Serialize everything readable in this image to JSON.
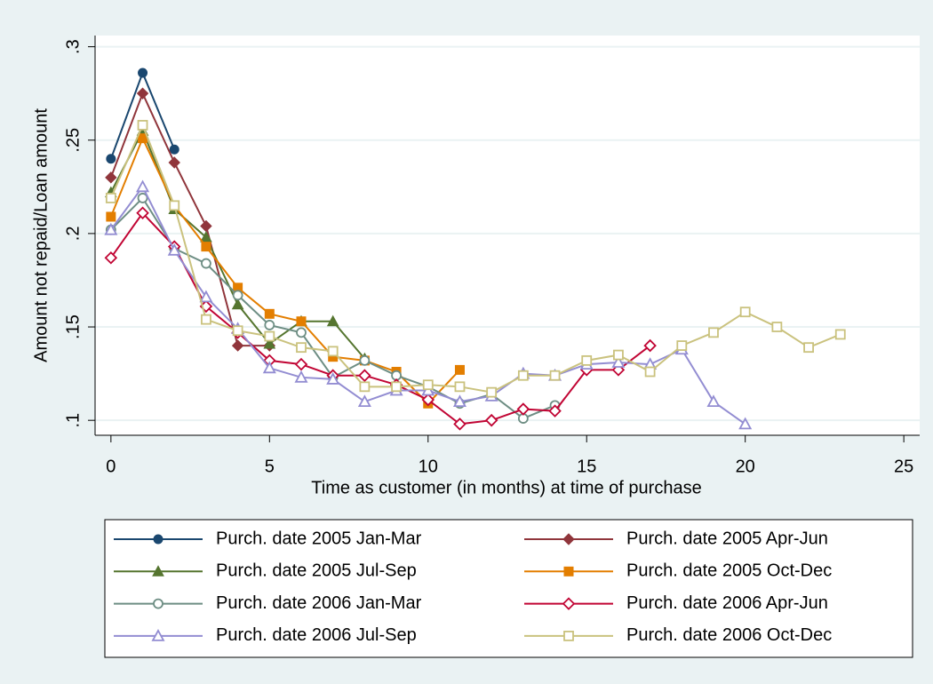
{
  "chart_data": {
    "type": "line",
    "x_label": "Time as customer (in months) at time of purchase",
    "y_label": "Amount not repaid/Loan amount",
    "x": [
      0,
      1,
      2,
      3,
      4,
      5,
      6,
      7,
      8,
      9,
      10,
      11,
      12,
      13,
      14,
      15,
      16,
      17,
      18,
      19,
      20,
      21,
      22,
      23
    ],
    "xlim": [
      -0.5,
      25.5
    ],
    "xticks": [
      0,
      5,
      10,
      15,
      20,
      25
    ],
    "ylim": [
      0.092,
      0.306
    ],
    "yticks": [
      {
        "value": 0.1,
        "label": ".1"
      },
      {
        "value": 0.15,
        "label": ".15"
      },
      {
        "value": 0.2,
        "label": ".2"
      },
      {
        "value": 0.25,
        "label": ".25"
      },
      {
        "value": 0.3,
        "label": ".3"
      }
    ],
    "grid": true,
    "legend": "bottom",
    "series": [
      {
        "name": "Purch. date 2005 Jan-Mar",
        "color": "#1a476f",
        "marker": "circle",
        "hollow": false,
        "values": [
          0.24,
          0.286,
          0.245,
          null,
          null,
          null,
          null,
          null,
          null,
          null,
          null,
          null,
          null,
          null,
          null,
          null,
          null,
          null,
          null,
          null,
          null,
          null,
          null,
          null
        ]
      },
      {
        "name": "Purch. date 2005 Apr-Jun",
        "color": "#90353b",
        "marker": "diamond",
        "hollow": false,
        "values": [
          0.23,
          0.275,
          0.238,
          0.204,
          0.14,
          0.14,
          null,
          null,
          null,
          null,
          null,
          null,
          null,
          null,
          null,
          null,
          null,
          null,
          null,
          null,
          null,
          null,
          null,
          null
        ]
      },
      {
        "name": "Purch. date 2005 Jul-Sep",
        "color": "#55752f",
        "marker": "triangle",
        "hollow": false,
        "values": [
          0.222,
          0.255,
          0.213,
          0.198,
          0.162,
          0.141,
          0.153,
          0.153,
          0.133,
          null,
          null,
          null,
          null,
          null,
          null,
          null,
          null,
          null,
          null,
          null,
          null,
          null,
          null,
          null
        ]
      },
      {
        "name": "Purch. date 2005 Oct-Dec",
        "color": "#e37e00",
        "marker": "square",
        "hollow": false,
        "values": [
          0.209,
          0.251,
          0.215,
          0.193,
          0.171,
          0.157,
          0.153,
          0.134,
          0.132,
          0.126,
          0.109,
          0.127,
          null,
          null,
          null,
          null,
          null,
          null,
          null,
          null,
          null,
          null,
          null,
          null
        ]
      },
      {
        "name": "Purch. date 2006 Jan-Mar",
        "color": "#6e8e84",
        "marker": "circle",
        "hollow": true,
        "values": [
          0.202,
          0.219,
          0.192,
          0.184,
          0.167,
          0.151,
          0.147,
          0.123,
          0.132,
          0.124,
          0.118,
          0.109,
          0.114,
          0.101,
          0.108,
          null,
          null,
          null,
          null,
          null,
          null,
          null,
          null,
          null
        ]
      },
      {
        "name": "Purch. date 2006 Apr-Jun",
        "color": "#c10534",
        "marker": "diamond",
        "hollow": true,
        "values": [
          0.187,
          0.211,
          0.193,
          0.161,
          0.147,
          0.132,
          0.13,
          0.124,
          0.124,
          0.119,
          0.111,
          0.098,
          0.1,
          0.106,
          0.105,
          0.127,
          0.127,
          0.14,
          null,
          null,
          null,
          null,
          null,
          null
        ]
      },
      {
        "name": "Purch. date 2006 Jul-Sep",
        "color": "#938dd2",
        "marker": "triangle",
        "hollow": true,
        "values": [
          0.202,
          0.225,
          0.191,
          0.166,
          0.149,
          0.128,
          0.123,
          0.122,
          0.11,
          0.116,
          0.116,
          0.11,
          0.113,
          0.125,
          0.124,
          0.13,
          0.131,
          0.13,
          0.138,
          0.11,
          0.098,
          null,
          null,
          null
        ]
      },
      {
        "name": "Purch. date 2006 Oct-Dec",
        "color": "#cac27e",
        "marker": "square",
        "hollow": true,
        "values": [
          0.219,
          0.258,
          0.215,
          0.154,
          0.148,
          0.145,
          0.139,
          0.137,
          0.118,
          0.118,
          0.119,
          0.118,
          0.115,
          0.124,
          0.124,
          0.132,
          0.135,
          0.126,
          0.14,
          0.147,
          0.158,
          0.15,
          0.139,
          0.146
        ]
      }
    ]
  }
}
